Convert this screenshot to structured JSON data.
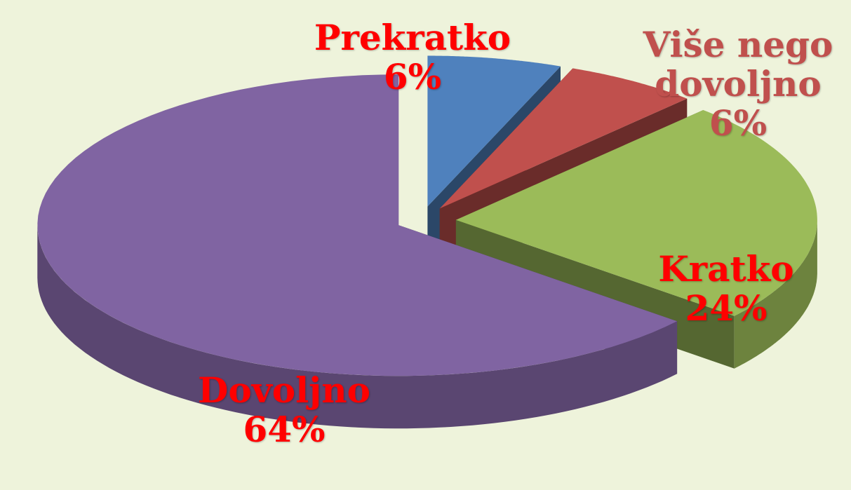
{
  "chart_data": {
    "type": "pie3d",
    "categories": [
      "Prekratko",
      "Više nego dovoljno",
      "Kratko",
      "Dovoljno"
    ],
    "values": [
      6,
      6,
      24,
      64
    ],
    "value_labels": [
      "6%",
      "6%",
      "24%",
      "64%"
    ],
    "colors": [
      "#4f81bd",
      "#c0504d",
      "#9bbb59",
      "#8064a2"
    ],
    "label_colors": [
      "#ff0000",
      "#c0504d",
      "#ff0000",
      "#ff0000"
    ],
    "exploded": true
  }
}
